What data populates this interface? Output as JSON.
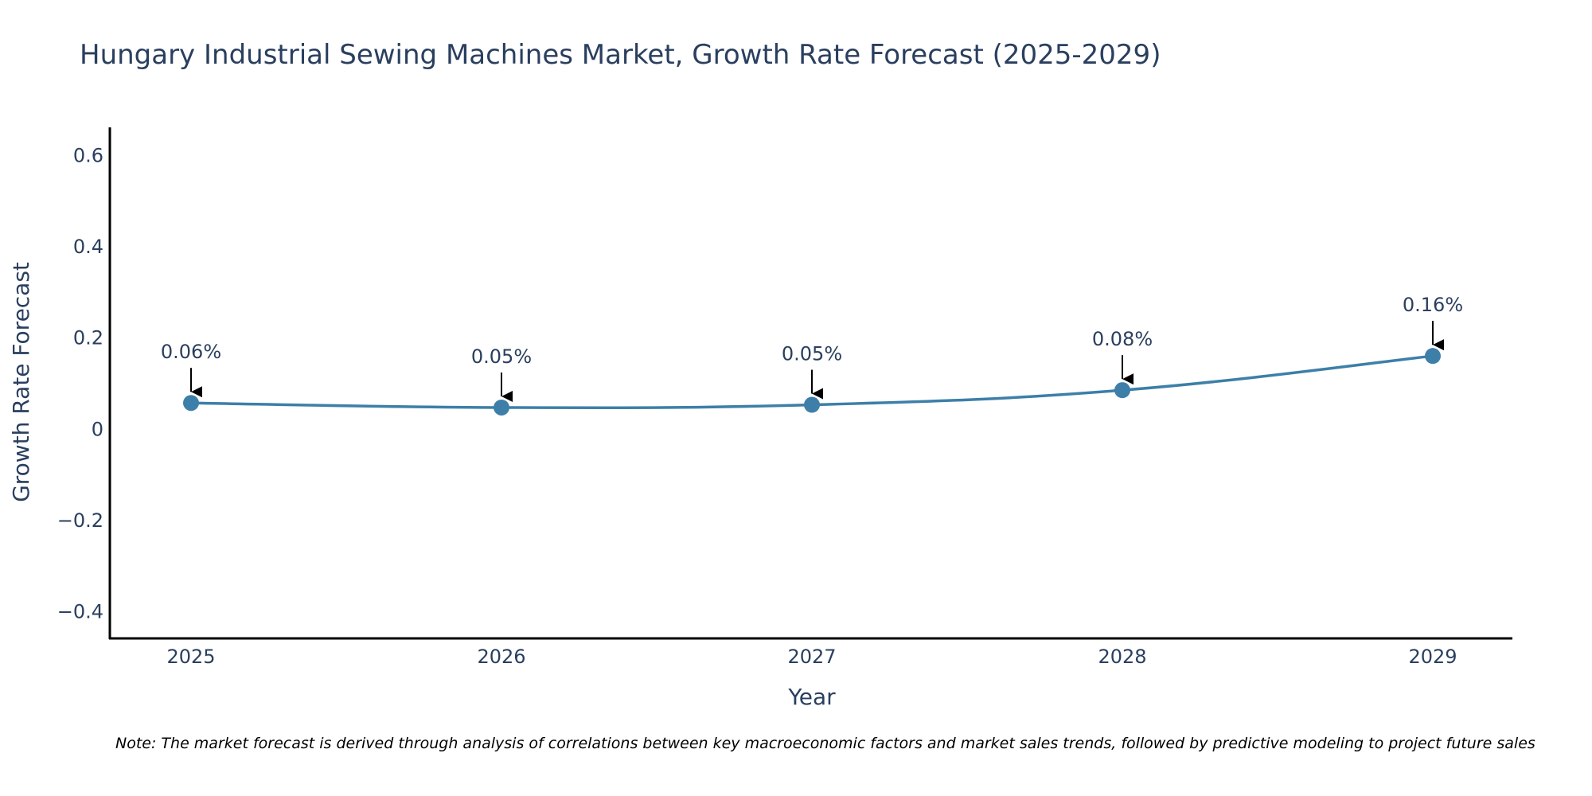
{
  "chart_data": {
    "type": "line",
    "title": "Hungary Industrial Sewing Machines Market, Growth Rate Forecast (2025-2029)",
    "xlabel": "Year",
    "ylabel": "Growth Rate Forecast",
    "categories": [
      "2025",
      "2026",
      "2027",
      "2028",
      "2029"
    ],
    "values": [
      0.056,
      0.046,
      0.052,
      0.084,
      0.159
    ],
    "data_labels": [
      "0.06%",
      "0.05%",
      "0.05%",
      "0.08%",
      "0.16%"
    ],
    "y_ticks": [
      -0.4,
      -0.2,
      0,
      0.2,
      0.4,
      0.6
    ],
    "y_tick_labels": [
      "−0.4",
      "−0.2",
      "0",
      "0.2",
      "0.4",
      "0.6"
    ],
    "ylim": [
      -0.46,
      0.66
    ],
    "line_color": "#3d7fa8",
    "marker_color": "#3d7fa8",
    "grid": false,
    "note": "Note: The market forecast is derived through analysis of correlations between key macroeconomic factors and market sales trends, followed by predictive modeling to project future sales"
  }
}
